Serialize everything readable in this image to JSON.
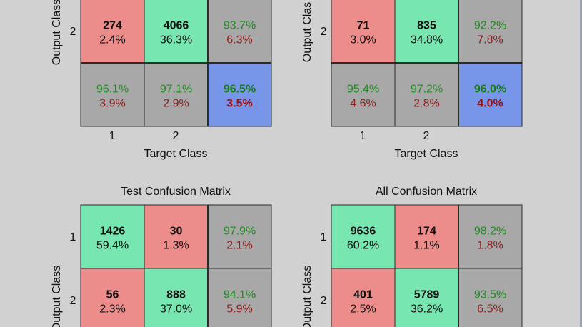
{
  "colors": {
    "correct": "#77e6b0",
    "wrong": "#ec8d8b",
    "summary": "#a8a8a8",
    "overall": "#7896e9",
    "green_text": "#1f8c1f",
    "red_text": "#8c1f1f",
    "background": "#d1d1d1"
  },
  "chart_data": [
    {
      "type": "table",
      "title": "",
      "xlabel": "Target Class",
      "ylabel": "Output Class",
      "col_ticks": [
        "1",
        "2"
      ],
      "row_ticks": [
        "2"
      ],
      "rows": [
        {
          "cells": [
            {
              "count": "274",
              "pct": "2.4%",
              "kind": "wrong"
            },
            {
              "count": "4066",
              "pct": "36.3%",
              "kind": "correct"
            },
            {
              "top": "93.7%",
              "bottom": "6.3%",
              "kind": "summary"
            }
          ]
        },
        {
          "cells": [
            {
              "top": "96.1%",
              "bottom": "3.9%",
              "kind": "summary"
            },
            {
              "top": "97.1%",
              "bottom": "2.9%",
              "kind": "summary"
            },
            {
              "top": "96.5%",
              "bottom": "3.5%",
              "kind": "overall"
            }
          ]
        }
      ]
    },
    {
      "type": "table",
      "title": "",
      "xlabel": "Target Class",
      "ylabel": "Output Clas",
      "col_ticks": [
        "1",
        "2"
      ],
      "row_ticks": [
        "2"
      ],
      "rows": [
        {
          "cells": [
            {
              "count": "71",
              "pct": "3.0%",
              "kind": "wrong"
            },
            {
              "count": "835",
              "pct": "34.8%",
              "kind": "correct"
            },
            {
              "top": "92.2%",
              "bottom": "7.8%",
              "kind": "summary"
            }
          ]
        },
        {
          "cells": [
            {
              "top": "95.4%",
              "bottom": "4.6%",
              "kind": "summary"
            },
            {
              "top": "97.2%",
              "bottom": "2.8%",
              "kind": "summary"
            },
            {
              "top": "96.0%",
              "bottom": "4.0%",
              "kind": "overall"
            }
          ]
        }
      ]
    },
    {
      "type": "table",
      "title": "Test Confusion Matrix",
      "xlabel": "",
      "ylabel": "Output Class",
      "col_ticks": [],
      "row_ticks": [
        "1",
        "2"
      ],
      "rows": [
        {
          "cells": [
            {
              "count": "1426",
              "pct": "59.4%",
              "kind": "correct"
            },
            {
              "count": "30",
              "pct": "1.3%",
              "kind": "wrong"
            },
            {
              "top": "97.9%",
              "bottom": "2.1%",
              "kind": "summary"
            }
          ]
        },
        {
          "cells": [
            {
              "count": "56",
              "pct": "2.3%",
              "kind": "wrong"
            },
            {
              "count": "888",
              "pct": "37.0%",
              "kind": "correct"
            },
            {
              "top": "94.1%",
              "bottom": "5.9%",
              "kind": "summary"
            }
          ]
        }
      ]
    },
    {
      "type": "table",
      "title": "All Confusion Matrix",
      "xlabel": "",
      "ylabel": "Output Class",
      "col_ticks": [],
      "row_ticks": [
        "1",
        "2"
      ],
      "rows": [
        {
          "cells": [
            {
              "count": "9636",
              "pct": "60.2%",
              "kind": "correct"
            },
            {
              "count": "174",
              "pct": "1.1%",
              "kind": "wrong"
            },
            {
              "top": "98.2%",
              "bottom": "1.8%",
              "kind": "summary"
            }
          ]
        },
        {
          "cells": [
            {
              "count": "401",
              "pct": "2.5%",
              "kind": "wrong"
            },
            {
              "count": "5789",
              "pct": "36.2%",
              "kind": "correct"
            },
            {
              "top": "93.5%",
              "bottom": "6.5%",
              "kind": "summary"
            }
          ]
        }
      ]
    }
  ]
}
